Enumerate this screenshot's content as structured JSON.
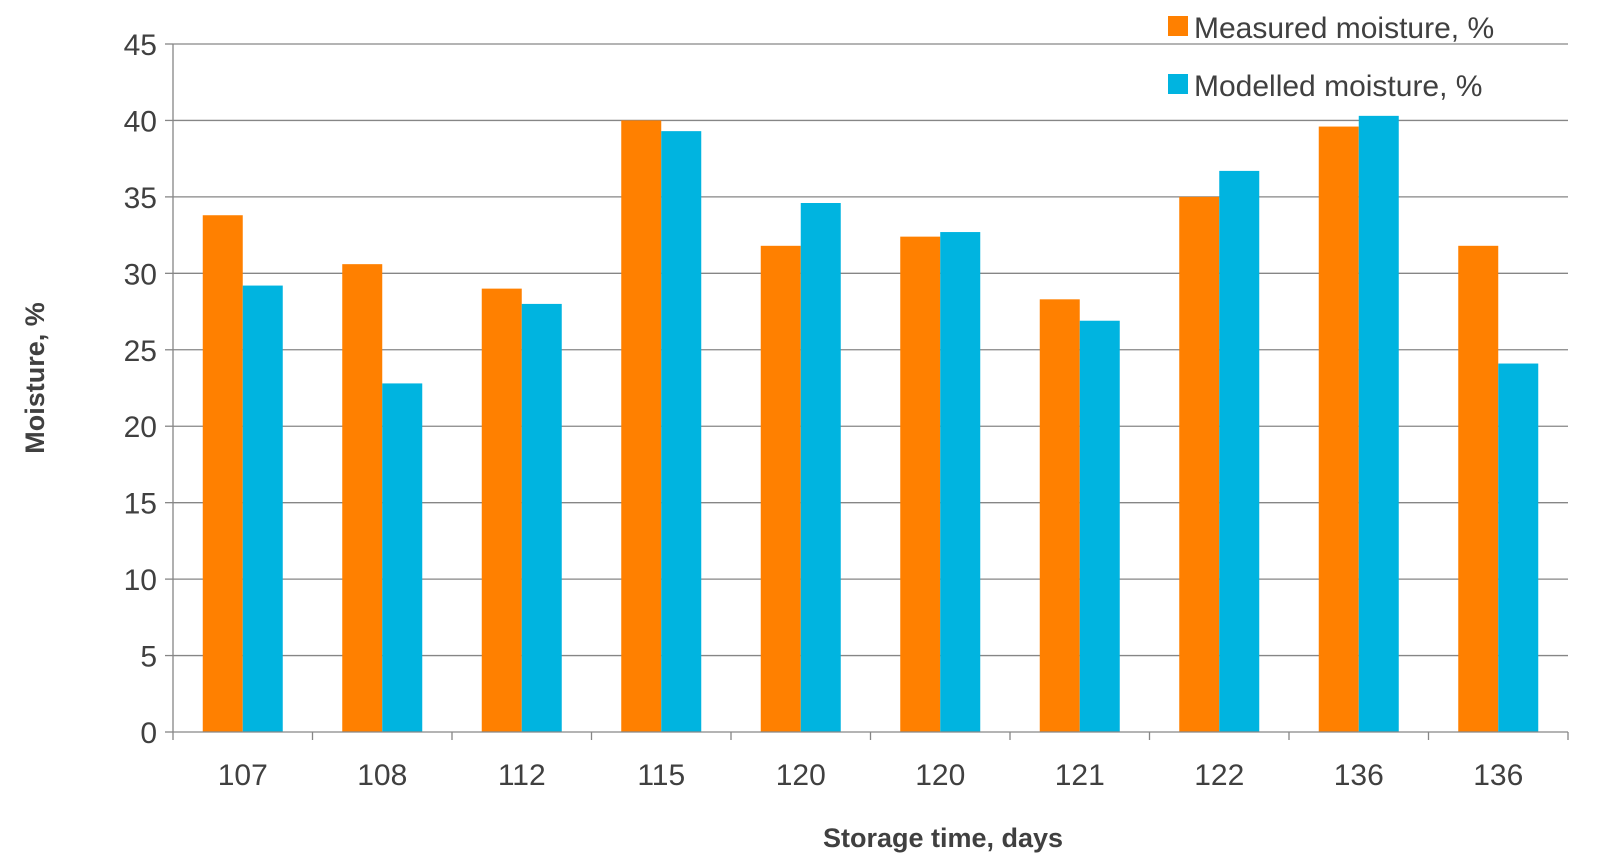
{
  "chart_data": {
    "type": "bar",
    "title": "",
    "xlabel": "Storage time, days",
    "ylabel": "Moisture, %",
    "categories": [
      "107",
      "108",
      "112",
      "115",
      "120",
      "120",
      "121",
      "122",
      "136",
      "136"
    ],
    "series": [
      {
        "name": "Measured moisture, %",
        "color": "#FF8000",
        "values": [
          33.8,
          30.6,
          29.0,
          40.0,
          31.8,
          32.4,
          28.3,
          35.0,
          39.6,
          31.8
        ]
      },
      {
        "name": "Modelled moisture, %",
        "color": "#00B4E0",
        "values": [
          29.2,
          22.8,
          28.0,
          39.3,
          34.6,
          32.7,
          26.9,
          36.7,
          40.3,
          24.1
        ]
      }
    ],
    "ylim": [
      0,
      45
    ],
    "yticks": [
      "0",
      "5",
      "10",
      "15",
      "20",
      "25",
      "30",
      "35",
      "40",
      "45"
    ],
    "grid": true,
    "legend_position": "top-right"
  }
}
